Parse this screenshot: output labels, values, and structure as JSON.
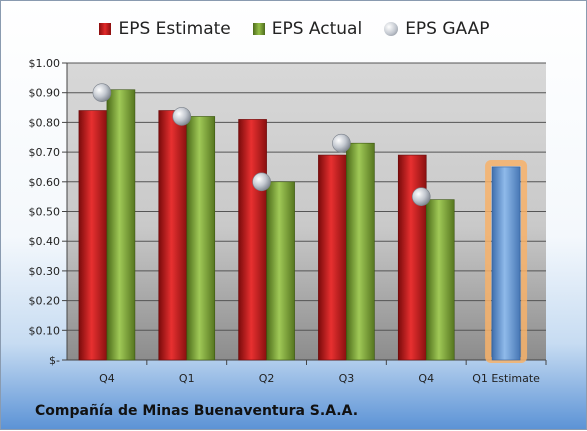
{
  "company_name": "Compañía de Minas Buenaventura S.A.A.",
  "legend": {
    "estimate": "EPS Estimate",
    "actual": "EPS Actual",
    "gaap": "EPS GAAP"
  },
  "colors": {
    "estimate": "#cc1f1f",
    "actual": "#7fa63a",
    "gaap": "#b8bec7",
    "estimate_bar": "#6f9fd8",
    "estimate_glow": "#f7b26a"
  },
  "chart_data": {
    "type": "bar",
    "categories": [
      "Q4",
      "Q1",
      "Q2",
      "Q3",
      "Q4",
      "Q1 Estimate"
    ],
    "series": [
      {
        "name": "EPS Estimate",
        "values": [
          0.84,
          0.84,
          0.81,
          0.69,
          0.69,
          null
        ]
      },
      {
        "name": "EPS Actual",
        "values": [
          0.91,
          0.82,
          0.6,
          0.73,
          0.54,
          null
        ]
      },
      {
        "name": "EPS GAAP",
        "type": "scatter",
        "values": [
          0.9,
          0.82,
          0.6,
          0.73,
          0.55,
          null
        ]
      }
    ],
    "next_estimate": {
      "category": "Q1 Estimate",
      "value": 0.65
    },
    "ylim": [
      0,
      1.0
    ],
    "yticks": [
      0,
      0.1,
      0.2,
      0.3,
      0.4,
      0.5,
      0.6,
      0.7,
      0.8,
      0.9,
      1.0
    ],
    "ytick_labels": [
      "$-",
      "$0.10",
      "$0.20",
      "$0.30",
      "$0.40",
      "$0.50",
      "$0.60",
      "$0.70",
      "$0.80",
      "$0.90",
      "$1.00"
    ],
    "grid": true,
    "legend_position": "top"
  }
}
